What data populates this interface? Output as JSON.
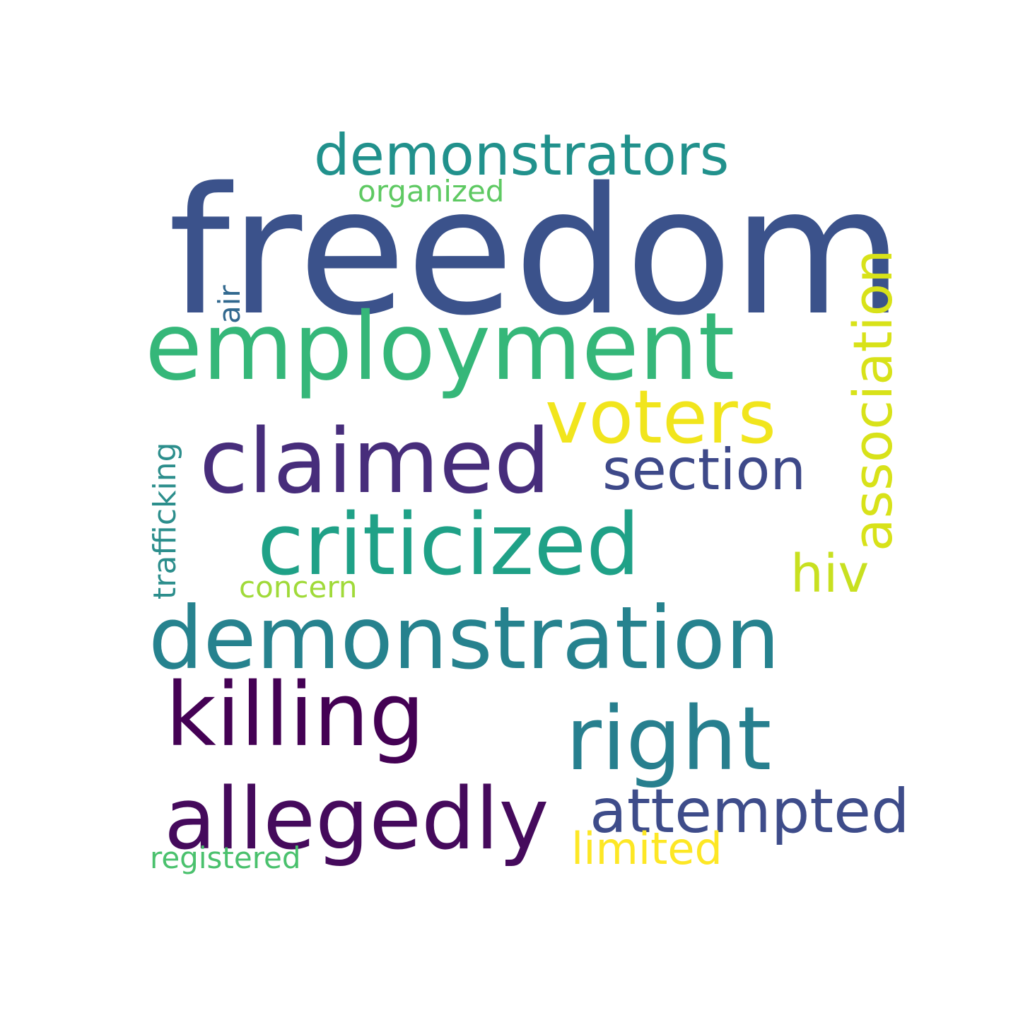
{
  "words": [
    {
      "text": "freedom",
      "color": "#3b528b"
    },
    {
      "text": "demonstrators",
      "color": "#21918c"
    },
    {
      "text": "organized",
      "color": "#5ec962"
    },
    {
      "text": "association",
      "color": "#d8e219"
    },
    {
      "text": "air",
      "color": "#31688e"
    },
    {
      "text": "employment",
      "color": "#35b779"
    },
    {
      "text": "voters",
      "color": "#f1e51d"
    },
    {
      "text": "claimed",
      "color": "#472d7b"
    },
    {
      "text": "section",
      "color": "#3e4989"
    },
    {
      "text": "trafficking",
      "color": "#2c8e8c"
    },
    {
      "text": "criticized",
      "color": "#1fa187"
    },
    {
      "text": "hiv",
      "color": "#c8e020"
    },
    {
      "text": "concern",
      "color": "#a0da39"
    },
    {
      "text": "demonstration",
      "color": "#26828e"
    },
    {
      "text": "killing",
      "color": "#440154"
    },
    {
      "text": "right",
      "color": "#277f8e"
    },
    {
      "text": "allegedly",
      "color": "#450a5c"
    },
    {
      "text": "attempted",
      "color": "#3e4c8a"
    },
    {
      "text": "limited",
      "color": "#fde725"
    },
    {
      "text": "registered",
      "color": "#4ac16d"
    }
  ]
}
